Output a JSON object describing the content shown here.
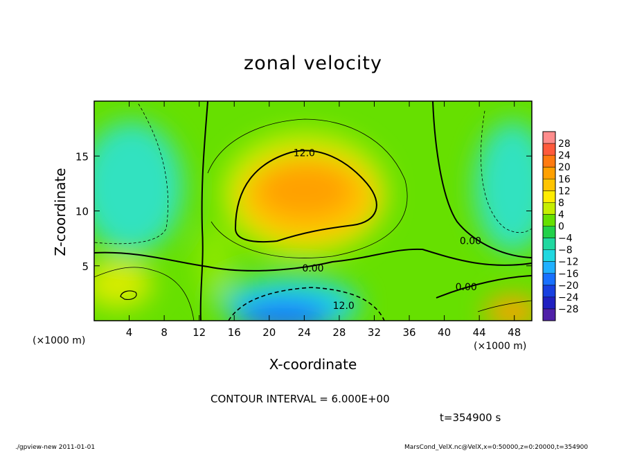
{
  "chart_data": {
    "type": "heatmap",
    "title": "zonal velocity",
    "xlabel": "X-coordinate",
    "ylabel": "Z-coordinate",
    "x_unit": "(×1000 m)",
    "x_ticks": [
      4,
      8,
      12,
      16,
      20,
      24,
      28,
      32,
      36,
      40,
      44,
      48
    ],
    "y_ticks": [
      5,
      10,
      15
    ],
    "xlim": [
      0,
      50
    ],
    "ylim": [
      0,
      20
    ],
    "contour_interval_text": "CONTOUR INTERVAL = 6.000E+00",
    "contour_labels": [
      {
        "text": "12.0",
        "x": 24,
        "y": 15.3
      },
      {
        "text": "0.00",
        "x": 25,
        "y": 4.8
      },
      {
        "text": "12.0",
        "x": 28.5,
        "y": 1.4
      },
      {
        "text": "0.00",
        "x": 42.5,
        "y": 3.1
      },
      {
        "text": "0.00",
        "x": 43,
        "y": 7.3
      }
    ],
    "colorbar": {
      "labels": [
        "28",
        "24",
        "20",
        "16",
        "12",
        "8",
        "4",
        "0",
        "−4",
        "−8",
        "−12",
        "−16",
        "−20",
        "−24",
        "−28"
      ],
      "colors": [
        "#ff8c8c",
        "#ff5a3c",
        "#ff7a10",
        "#ffa000",
        "#ffc400",
        "#ffec00",
        "#c6ee00",
        "#66e000",
        "#22d14a",
        "#20d8a0",
        "#20d8e0",
        "#20b0ff",
        "#1870ff",
        "#1840e0",
        "#2020c0",
        "#5020a8"
      ]
    },
    "regions": [
      {
        "name": "positive core",
        "approx_max": 18,
        "center": [
          24,
          11.5
        ]
      },
      {
        "name": "negative core",
        "approx_min": -22,
        "center": [
          22,
          1
        ]
      },
      {
        "name": "upper-left cyan",
        "approx_value": -8,
        "center": [
          3,
          12
        ]
      },
      {
        "name": "upper-right cyan",
        "approx_value": -8,
        "center": [
          48,
          12
        ]
      },
      {
        "name": "lower-left warm",
        "approx_value": 12,
        "center": [
          4,
          2.5
        ]
      },
      {
        "name": "lower-right warm",
        "approx_value": 16,
        "center": [
          48,
          1
        ]
      }
    ]
  },
  "annotations": {
    "time": "t=354900 s",
    "footer_left": "./gpview-new   2011-01-01",
    "footer_right": "MarsCond_VelX.nc@VelX,x=0:50000,z=0:20000,t=354900"
  }
}
